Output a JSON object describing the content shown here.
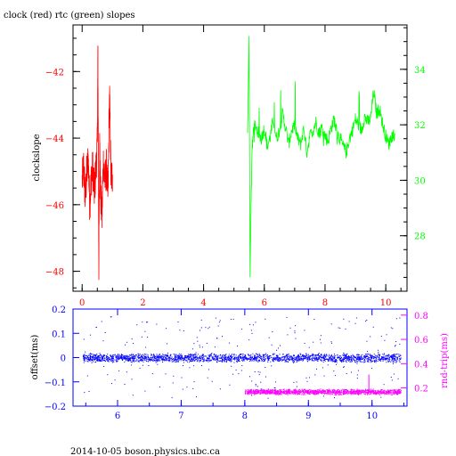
{
  "page": {
    "title": "clock (red) rtc (green) slopes",
    "footer": "2014-10-05 boson.physics.ubc.ca"
  },
  "colors": {
    "clock": "#ff0000",
    "rtc": "#00ff00",
    "offset": "#0000ff",
    "rndtrip": "#ff00ff",
    "axis": "#000000"
  },
  "chart_data": [
    {
      "type": "line",
      "title": "clock (red) rtc (green) slopes",
      "xlabel": "",
      "ylabel": "clockslope",
      "y2label": "",
      "xlim": [
        -0.3,
        10.7
      ],
      "ylim": [
        -48.6,
        -40.6
      ],
      "y2lim": [
        26.0,
        35.6
      ],
      "xticks": [
        0,
        2,
        4,
        6,
        8,
        10
      ],
      "yticks": [
        -48,
        -46,
        -44,
        -42
      ],
      "y2ticks": [
        28,
        30,
        32,
        34
      ],
      "series": [
        {
          "name": "clock",
          "axis": "left",
          "x": [
            0.0,
            0.05,
            0.1,
            0.15,
            0.2,
            0.25,
            0.3,
            0.35,
            0.4,
            0.45,
            0.5,
            0.52,
            0.55,
            0.58,
            0.6,
            0.65,
            0.7,
            0.75,
            0.8,
            0.85,
            0.9,
            0.95,
            1.0
          ],
          "y": [
            -45.3,
            -44.8,
            -45.8,
            -45.1,
            -44.6,
            -46.0,
            -45.2,
            -44.9,
            -45.6,
            -45.0,
            -44.2,
            -41.5,
            -47.8,
            -44.0,
            -45.5,
            -46.4,
            -44.7,
            -45.3,
            -44.9,
            -45.8,
            -42.6,
            -45.2,
            -45.1
          ]
        },
        {
          "name": "rtc",
          "axis": "right",
          "x": [
            5.45,
            5.5,
            5.53,
            5.56,
            5.6,
            5.65,
            5.7,
            5.8,
            5.9,
            6.0,
            6.1,
            6.2,
            6.3,
            6.4,
            6.5,
            6.6,
            6.7,
            6.8,
            6.9,
            7.0,
            7.1,
            7.2,
            7.3,
            7.4,
            7.5,
            7.6,
            7.7,
            7.8,
            7.9,
            8.0,
            8.1,
            8.2,
            8.3,
            8.4,
            8.5,
            8.6,
            8.7,
            8.8,
            8.9,
            9.0,
            9.1,
            9.2,
            9.3,
            9.4,
            9.5,
            9.6,
            9.7,
            9.8,
            9.9,
            10.0,
            10.1,
            10.2,
            10.3
          ],
          "y": [
            31.7,
            35.2,
            26.5,
            29.0,
            31.2,
            31.8,
            32.0,
            31.7,
            31.5,
            31.9,
            31.2,
            31.6,
            32.2,
            31.5,
            31.8,
            32.4,
            31.9,
            31.3,
            31.8,
            32.0,
            31.5,
            31.3,
            31.9,
            31.0,
            31.6,
            31.8,
            32.1,
            31.7,
            31.9,
            31.6,
            31.4,
            31.9,
            32.2,
            31.7,
            31.5,
            31.2,
            31.0,
            31.5,
            31.8,
            32.2,
            32.0,
            31.8,
            32.3,
            32.1,
            32.2,
            33.2,
            32.4,
            32.6,
            32.0,
            31.6,
            31.3,
            31.6,
            31.7
          ]
        }
      ]
    },
    {
      "type": "scatter",
      "xlabel": "",
      "ylabel": "offset(ms)",
      "y2label": "rnd-trip(ms)",
      "xlim": [
        5.3,
        10.55
      ],
      "ylim": [
        -0.2,
        0.2
      ],
      "y2lim": [
        0.05,
        0.85
      ],
      "xticks": [
        6,
        7,
        8,
        9,
        10
      ],
      "yticks": [
        -0.2,
        -0.1,
        0,
        0.1,
        0.2
      ],
      "y2ticks": [
        0.2,
        0.4,
        0.6,
        0.8
      ],
      "ytick_labels": [
        "−0.2",
        "−0.1",
        "0",
        "0.1",
        "0.2"
      ],
      "y2tick_labels": [
        "0.2",
        "0.4",
        "0.6",
        "0.8"
      ],
      "series": [
        {
          "name": "offset",
          "axis": "left",
          "x_range": [
            5.45,
            10.45
          ],
          "band_center": 0.0,
          "band_half_width": 0.02,
          "outlier_range": [
            -0.17,
            0.17
          ]
        },
        {
          "name": "rnd-trip",
          "axis": "right",
          "x_range": [
            8.0,
            10.45
          ],
          "band_center": 0.17,
          "band_half_width": 0.025,
          "spike": {
            "x": 9.95,
            "y": 0.31
          }
        }
      ]
    }
  ]
}
